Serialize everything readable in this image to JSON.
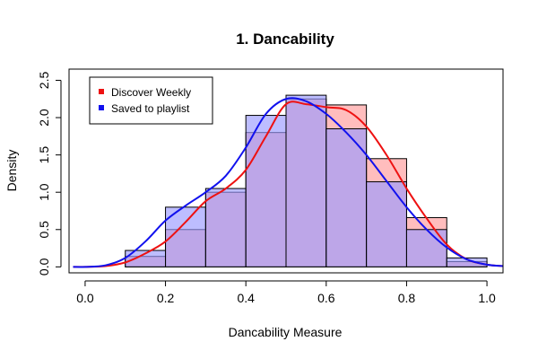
{
  "chart_data": {
    "type": "bar",
    "title": "1. Dancability",
    "xlabel": "Dancability Measure",
    "ylabel": "Density",
    "xlim": [
      -0.04,
      1.04
    ],
    "ylim": [
      -0.08,
      2.65
    ],
    "x_ticks": [
      0.0,
      0.2,
      0.4,
      0.6,
      0.8,
      1.0
    ],
    "x_tick_labels": [
      "0.0",
      "0.2",
      "0.4",
      "0.6",
      "0.8",
      "1.0"
    ],
    "y_ticks": [
      0.0,
      0.5,
      1.0,
      1.5,
      2.0,
      2.5
    ],
    "y_tick_labels": [
      "0.0",
      "0.5",
      "1.0",
      "1.5",
      "2.0",
      "2.5"
    ],
    "bins": [
      [
        0.1,
        0.2
      ],
      [
        0.2,
        0.3
      ],
      [
        0.3,
        0.4
      ],
      [
        0.4,
        0.5
      ],
      [
        0.5,
        0.6
      ],
      [
        0.6,
        0.7
      ],
      [
        0.7,
        0.8
      ],
      [
        0.8,
        0.9
      ],
      [
        0.9,
        1.0
      ]
    ],
    "legend_position": "top-left",
    "grid": false,
    "series": [
      {
        "name": "Discover Weekly",
        "color": "#ee1111",
        "fill": "#ff9999",
        "values": [
          0.14,
          0.5,
          1.0,
          1.8,
          2.25,
          2.17,
          1.45,
          0.66,
          0.07
        ],
        "density": {
          "x": [
            -0.03,
            0.0,
            0.05,
            0.1,
            0.15,
            0.2,
            0.25,
            0.3,
            0.35,
            0.4,
            0.45,
            0.5,
            0.55,
            0.6,
            0.65,
            0.7,
            0.75,
            0.8,
            0.85,
            0.9,
            0.95,
            1.0,
            1.04
          ],
          "y": [
            0.0,
            0.0,
            0.01,
            0.06,
            0.18,
            0.34,
            0.6,
            0.88,
            1.05,
            1.3,
            1.75,
            2.18,
            2.18,
            2.14,
            2.1,
            1.88,
            1.5,
            1.05,
            0.65,
            0.3,
            0.1,
            0.03,
            0.01
          ]
        }
      },
      {
        "name": "Saved to playlist",
        "color": "#1111ee",
        "fill": "#9999ff",
        "values": [
          0.22,
          0.8,
          1.05,
          2.03,
          2.3,
          1.85,
          1.14,
          0.5,
          0.12
        ],
        "density": {
          "x": [
            -0.03,
            0.0,
            0.05,
            0.1,
            0.15,
            0.2,
            0.25,
            0.3,
            0.35,
            0.4,
            0.45,
            0.5,
            0.55,
            0.6,
            0.65,
            0.7,
            0.75,
            0.8,
            0.85,
            0.9,
            0.95,
            1.0,
            1.04
          ],
          "y": [
            0.0,
            0.0,
            0.02,
            0.12,
            0.34,
            0.62,
            0.82,
            1.0,
            1.22,
            1.6,
            2.05,
            2.25,
            2.22,
            2.05,
            1.8,
            1.5,
            1.15,
            0.8,
            0.5,
            0.26,
            0.1,
            0.03,
            0.01
          ]
        }
      }
    ]
  }
}
